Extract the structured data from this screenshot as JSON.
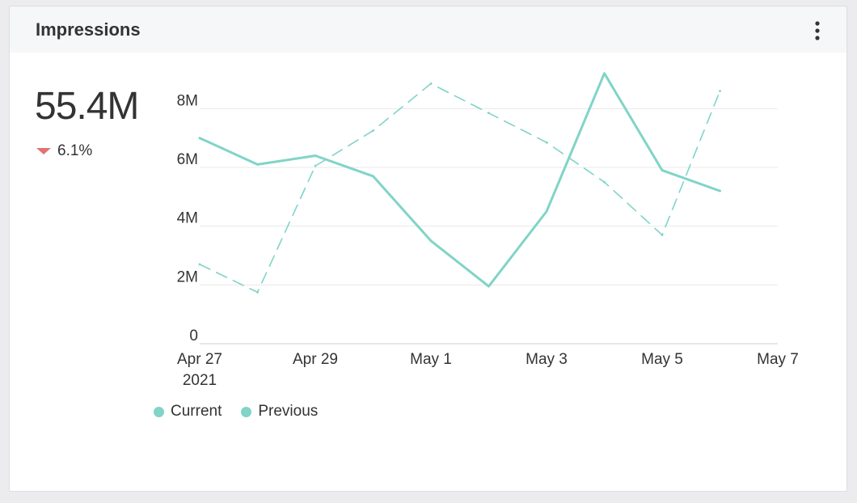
{
  "card": {
    "title": "Impressions",
    "menu_icon": "more-vertical-icon"
  },
  "kpi": {
    "value": "55.4M",
    "change": "6.1%",
    "direction": "down",
    "down_color": "#e07373"
  },
  "chart_data": {
    "type": "line",
    "title": "",
    "xlabel": "",
    "ylabel": "",
    "ylim": [
      0,
      9000000
    ],
    "yticks": [
      {
        "value": 0,
        "label": "0"
      },
      {
        "value": 2000000,
        "label": "2M"
      },
      {
        "value": 4000000,
        "label": "4M"
      },
      {
        "value": 6000000,
        "label": "6M"
      },
      {
        "value": 8000000,
        "label": "8M"
      }
    ],
    "x_dates": [
      "2021-04-27",
      "2021-04-28",
      "2021-04-29",
      "2021-04-30",
      "2021-05-01",
      "2021-05-02",
      "2021-05-03",
      "2021-05-04",
      "2021-05-05",
      "2021-05-06"
    ],
    "xticks": [
      {
        "date": "2021-04-27",
        "label": "Apr 27",
        "sublabel": "2021"
      },
      {
        "date": "2021-04-29",
        "label": "Apr 29",
        "sublabel": ""
      },
      {
        "date": "2021-05-01",
        "label": "May 1",
        "sublabel": ""
      },
      {
        "date": "2021-05-03",
        "label": "May 3",
        "sublabel": ""
      },
      {
        "date": "2021-05-05",
        "label": "May 5",
        "sublabel": ""
      },
      {
        "date": "2021-05-07",
        "label": "May 7",
        "sublabel": ""
      }
    ],
    "xlim": [
      "2021-04-27",
      "2021-05-07"
    ],
    "grid": true,
    "legend_position": "bottom-left",
    "series": [
      {
        "name": "Current",
        "style": "solid",
        "color": "#80d4c8",
        "values": [
          7000000,
          6100000,
          6400000,
          5700000,
          3500000,
          1950000,
          4500000,
          9200000,
          5900000,
          5200000
        ]
      },
      {
        "name": "Previous",
        "style": "dashed",
        "color": "#80d4c8",
        "values": [
          2700000,
          1750000,
          6050000,
          7250000,
          8850000,
          7850000,
          6850000,
          5500000,
          3700000,
          8600000
        ]
      }
    ]
  }
}
